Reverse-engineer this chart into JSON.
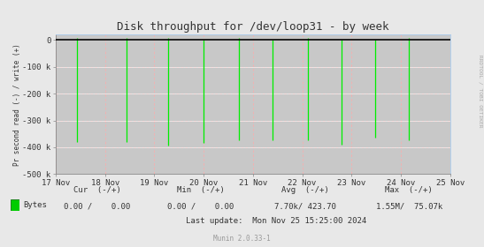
{
  "title": "Disk throughput for /dev/loop31 - by week",
  "ylabel": "Pr second read (-) / write (+)",
  "side_label": "RRDTOOL / TOBI OETIKER",
  "xlabel_dates": [
    "17 Nov",
    "18 Nov",
    "19 Nov",
    "20 Nov",
    "21 Nov",
    "22 Nov",
    "23 Nov",
    "24 Nov",
    "25 Nov"
  ],
  "ylim": [
    -500000,
    20000
  ],
  "bg_color": "#e8e8e8",
  "plot_bg_color": "#c8c8c8",
  "line_color": "#00ee00",
  "zero_line_color": "#000000",
  "spike_configs": [
    [
      0.055,
      -380000,
      true
    ],
    [
      0.18,
      -380000,
      true
    ],
    [
      0.285,
      -395000,
      true
    ],
    [
      0.375,
      -385000,
      false
    ],
    [
      0.465,
      -375000,
      true
    ],
    [
      0.55,
      -375000,
      false
    ],
    [
      0.64,
      -375000,
      true
    ],
    [
      0.725,
      -390000,
      false
    ],
    [
      0.81,
      -365000,
      false
    ],
    [
      0.895,
      -375000,
      true
    ]
  ],
  "legend_color": "#00cc00",
  "legend_border": "#006600",
  "font_color": "#333333",
  "side_label_color": "#aaaaaa",
  "title_fontsize": 9,
  "axis_fontsize": 6.5,
  "stats_fontsize": 6.5,
  "munin_fontsize": 5.5,
  "last_update": "Last update:  Mon Nov 25 15:25:00 2024",
  "munin_version": "Munin 2.0.33-1"
}
